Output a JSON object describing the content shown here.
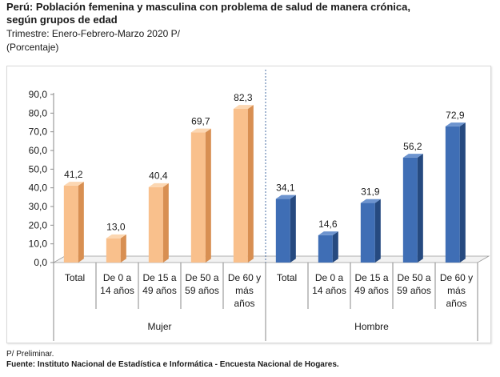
{
  "header": {
    "title": "Perú: Población femenina y masculina con problema de salud de manera crónica, según grupos de edad",
    "subtitle": "Trimestre: Enero-Febrero-Marzo 2020 P/",
    "unit": "(Porcentaje)"
  },
  "footer": {
    "note": "P/ Preliminar.",
    "source": "Fuente: Instituto Nacional de Estadística e Informática - Encuesta Nacional de Hogares."
  },
  "colors": {
    "mujer_front": "#f9c08c",
    "mujer_side": "#d88f52",
    "mujer_top": "#fcd7b2",
    "hombre_front": "#3f6eb5",
    "hombre_side": "#264a80",
    "hombre_top": "#6d94cf"
  },
  "chart_data": {
    "type": "bar",
    "ylim": [
      0,
      90
    ],
    "yticks": [
      "0,0",
      "10,0",
      "20,0",
      "30,0",
      "40,0",
      "50,0",
      "60,0",
      "70,0",
      "80,0",
      "90,0"
    ],
    "groups": [
      {
        "name": "Mujer",
        "categories": [
          "Total",
          "De 0 a 14 años",
          "De 15 a 49 años",
          "De 50 a 59 años",
          "De 60 y más años"
        ],
        "values": [
          41.2,
          13.0,
          40.4,
          69.7,
          82.3
        ],
        "labels": [
          "41,2",
          "13,0",
          "40,4",
          "69,7",
          "82,3"
        ]
      },
      {
        "name": "Hombre",
        "categories": [
          "Total",
          "De 0 a 14 años",
          "De 15 a 49 años",
          "De 50 a 59 años",
          "De 60 y más años"
        ],
        "values": [
          34.1,
          14.6,
          31.9,
          56.2,
          72.9
        ],
        "labels": [
          "34,1",
          "14,6",
          "31,9",
          "56,2",
          "72,9"
        ]
      }
    ]
  }
}
